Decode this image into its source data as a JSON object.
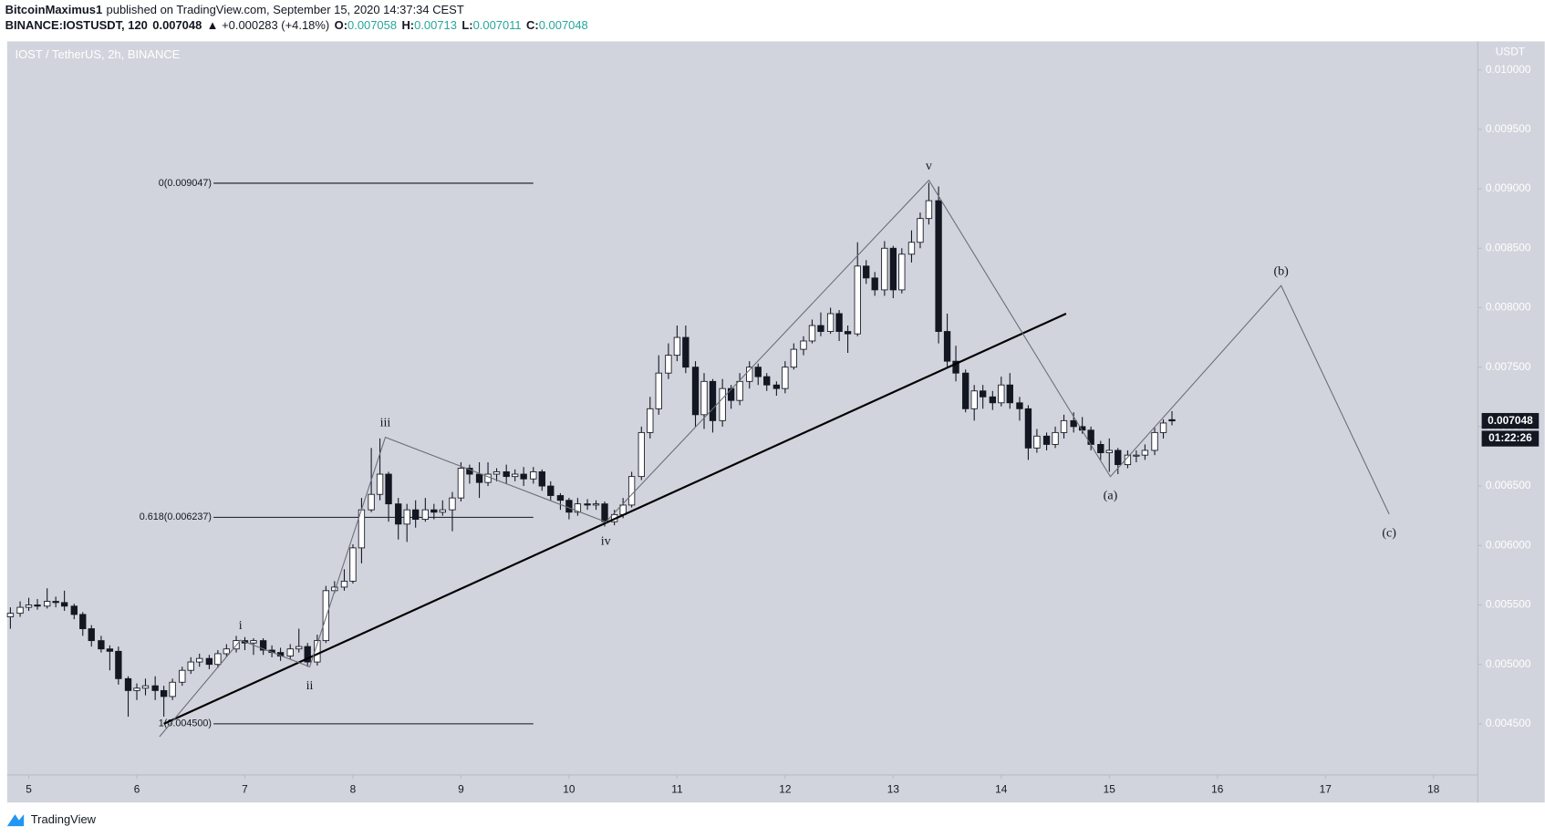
{
  "header": {
    "author": "BitcoinMaximus1",
    "published": "published on TradingView.com, September 15, 2020 14:37:34 CEST",
    "symbol": "BINANCE:IOSTUSDT, 120",
    "change": "▲ +0.000283 (+4.18%)",
    "ohlc_labels": [
      "O:",
      "H:",
      "L:",
      "C:"
    ]
  },
  "chart_data": {
    "type": "candlestick",
    "title": "IOST / TetherUS, 2h, BINANCE",
    "unit": "USDT",
    "countdown": "01:22:26",
    "logo": "TradingView",
    "xlim": [
      4.8,
      18.41
    ],
    "xticks": [
      5,
      6,
      7,
      8,
      9,
      10,
      11,
      12,
      13,
      14,
      15,
      16,
      17,
      18
    ],
    "ylim": [
      0.00407,
      0.01024
    ],
    "yticks": [
      {
        "value": 0.0045,
        "label": "0.004500"
      },
      {
        "value": 0.005,
        "label": "0.005000"
      },
      {
        "value": 0.0055,
        "label": "0.005500"
      },
      {
        "value": 0.006,
        "label": "0.006000"
      },
      {
        "value": 0.0065,
        "label": "0.006500"
      },
      {
        "value": 0.007,
        "label": "0.007000"
      },
      {
        "value": 0.0075,
        "label": "0.007500"
      },
      {
        "value": 0.008,
        "label": "0.008000"
      },
      {
        "value": 0.0085,
        "label": "0.008500"
      },
      {
        "value": 0.009,
        "label": "0.009000"
      },
      {
        "value": 0.0095,
        "label": "0.009500"
      },
      {
        "value": 0.01,
        "label": "0.010000"
      }
    ],
    "up_color": "#ffffff",
    "down_color": "#131722",
    "value_color": "#26a69a",
    "x": [
      4.83,
      4.92,
      5.0,
      5.08,
      5.17,
      5.25,
      5.33,
      5.42,
      5.5,
      5.58,
      5.67,
      5.75,
      5.83,
      5.92,
      6.0,
      6.08,
      6.17,
      6.25,
      6.33,
      6.42,
      6.5,
      6.58,
      6.67,
      6.75,
      6.83,
      6.92,
      7.0,
      7.08,
      7.17,
      7.25,
      7.33,
      7.42,
      7.5,
      7.58,
      7.67,
      7.75,
      7.83,
      7.92,
      8.0,
      8.08,
      8.17,
      8.25,
      8.33,
      8.42,
      8.5,
      8.58,
      8.67,
      8.75,
      8.83,
      8.92,
      9.0,
      9.08,
      9.17,
      9.25,
      9.33,
      9.42,
      9.5,
      9.58,
      9.67,
      9.75,
      9.83,
      9.92,
      10.0,
      10.08,
      10.17,
      10.25,
      10.33,
      10.42,
      10.5,
      10.58,
      10.67,
      10.75,
      10.83,
      10.92,
      11.0,
      11.08,
      11.17,
      11.25,
      11.33,
      11.42,
      11.5,
      11.58,
      11.67,
      11.75,
      11.83,
      11.92,
      12.0,
      12.08,
      12.17,
      12.25,
      12.33,
      12.42,
      12.5,
      12.58,
      12.67,
      12.75,
      12.83,
      12.92,
      13.0,
      13.08,
      13.17,
      13.25,
      13.33,
      13.42,
      13.5,
      13.58,
      13.67,
      13.75,
      13.83,
      13.92,
      14.0,
      14.08,
      14.17,
      14.25,
      14.33,
      14.42,
      14.5,
      14.58,
      14.67,
      14.75,
      14.83,
      14.92,
      15.0,
      15.08,
      15.17,
      15.25,
      15.33,
      15.42,
      15.5,
      15.58
    ],
    "open": [
      0.0054,
      0.00543,
      0.00548,
      0.0055,
      0.00549,
      0.00553,
      0.00552,
      0.00549,
      0.00542,
      0.0053,
      0.0052,
      0.00513,
      0.00511,
      0.00488,
      0.00478,
      0.0048,
      0.00482,
      0.00478,
      0.00473,
      0.00485,
      0.00495,
      0.00502,
      0.00505,
      0.005,
      0.00509,
      0.00513,
      0.0052,
      0.00518,
      0.0052,
      0.00512,
      0.0051,
      0.00507,
      0.00513,
      0.00515,
      0.00502,
      0.0052,
      0.00562,
      0.00565,
      0.0057,
      0.00598,
      0.0063,
      0.00643,
      0.0066,
      0.00635,
      0.00618,
      0.0063,
      0.00622,
      0.0063,
      0.00628,
      0.0063,
      0.0064,
      0.00665,
      0.0066,
      0.00653,
      0.0066,
      0.00662,
      0.00658,
      0.0066,
      0.00656,
      0.00662,
      0.0065,
      0.00642,
      0.00638,
      0.00628,
      0.00635,
      0.00634,
      0.00635,
      0.0062,
      0.00626,
      0.00634,
      0.00658,
      0.00695,
      0.00715,
      0.00745,
      0.0076,
      0.00775,
      0.0075,
      0.0071,
      0.00738,
      0.00705,
      0.00732,
      0.00722,
      0.00738,
      0.0075,
      0.00742,
      0.00735,
      0.00732,
      0.0075,
      0.00765,
      0.00772,
      0.00785,
      0.0078,
      0.00795,
      0.0078,
      0.00778,
      0.00835,
      0.00825,
      0.00815,
      0.0085,
      0.00815,
      0.00845,
      0.00855,
      0.00875,
      0.0089,
      0.0078,
      0.00755,
      0.00745,
      0.00715,
      0.0073,
      0.00725,
      0.0072,
      0.00735,
      0.0072,
      0.00715,
      0.00682,
      0.00692,
      0.00685,
      0.00695,
      0.00705,
      0.007,
      0.00697,
      0.00685,
      0.00678,
      0.0068,
      0.00668,
      0.00676,
      0.00676,
      0.0068,
      0.00695,
      0.007058
    ],
    "high": [
      0.00548,
      0.00553,
      0.00556,
      0.00555,
      0.00564,
      0.00557,
      0.00562,
      0.00551,
      0.00544,
      0.00533,
      0.00524,
      0.00516,
      0.00515,
      0.0049,
      0.00484,
      0.00488,
      0.0049,
      0.00482,
      0.00488,
      0.00498,
      0.00506,
      0.00509,
      0.00508,
      0.00512,
      0.00517,
      0.00524,
      0.00523,
      0.00522,
      0.00522,
      0.00516,
      0.00514,
      0.00517,
      0.0053,
      0.00518,
      0.00525,
      0.00566,
      0.0057,
      0.0058,
      0.00601,
      0.0064,
      0.00682,
      0.0069,
      0.00662,
      0.0064,
      0.00635,
      0.00638,
      0.0064,
      0.00635,
      0.00638,
      0.00645,
      0.0067,
      0.00668,
      0.0067,
      0.0067,
      0.00665,
      0.00668,
      0.00664,
      0.00666,
      0.00666,
      0.00664,
      0.00654,
      0.00644,
      0.0064,
      0.0064,
      0.00639,
      0.00638,
      0.00637,
      0.0063,
      0.0064,
      0.00662,
      0.007,
      0.00725,
      0.0076,
      0.0077,
      0.00785,
      0.00785,
      0.00755,
      0.00745,
      0.0074,
      0.0074,
      0.00735,
      0.00745,
      0.00755,
      0.00753,
      0.00745,
      0.00738,
      0.00755,
      0.0077,
      0.00776,
      0.0079,
      0.00796,
      0.008,
      0.00798,
      0.00785,
      0.00855,
      0.0084,
      0.0083,
      0.00856,
      0.00852,
      0.0085,
      0.00865,
      0.0088,
      0.00905,
      0.00902,
      0.00795,
      0.00768,
      0.00748,
      0.00735,
      0.00735,
      0.0073,
      0.00742,
      0.00745,
      0.00725,
      0.00718,
      0.00698,
      0.00695,
      0.007,
      0.0071,
      0.00712,
      0.00708,
      0.007,
      0.00688,
      0.0069,
      0.00682,
      0.0068,
      0.0068,
      0.00685,
      0.00699,
      0.00706,
      0.00713
    ],
    "low": [
      0.0053,
      0.0054,
      0.00545,
      0.00546,
      0.00547,
      0.00548,
      0.00545,
      0.00538,
      0.00524,
      0.00515,
      0.0051,
      0.00495,
      0.00483,
      0.00456,
      0.0047,
      0.00474,
      0.0047,
      0.00456,
      0.0047,
      0.00482,
      0.00492,
      0.00498,
      0.00496,
      0.00497,
      0.00506,
      0.0051,
      0.00512,
      0.00508,
      0.00508,
      0.00506,
      0.00503,
      0.00504,
      0.0051,
      0.00498,
      0.00499,
      0.00518,
      0.0056,
      0.00562,
      0.00568,
      0.00585,
      0.00628,
      0.00638,
      0.0062,
      0.00605,
      0.00603,
      0.00615,
      0.0062,
      0.00622,
      0.00625,
      0.00612,
      0.00637,
      0.00652,
      0.0064,
      0.0065,
      0.00654,
      0.00652,
      0.00654,
      0.0065,
      0.00652,
      0.00646,
      0.00638,
      0.0063,
      0.00622,
      0.00625,
      0.0063,
      0.0063,
      0.00616,
      0.00617,
      0.00623,
      0.00632,
      0.00655,
      0.0069,
      0.0071,
      0.0074,
      0.00755,
      0.00745,
      0.007,
      0.00698,
      0.00695,
      0.007,
      0.00715,
      0.00718,
      0.00732,
      0.00735,
      0.0073,
      0.00726,
      0.00728,
      0.00748,
      0.0076,
      0.0077,
      0.00776,
      0.00778,
      0.00772,
      0.00762,
      0.00776,
      0.0082,
      0.0081,
      0.0081,
      0.00808,
      0.00812,
      0.00838,
      0.0085,
      0.0087,
      0.0077,
      0.0075,
      0.00738,
      0.00712,
      0.00705,
      0.00715,
      0.00714,
      0.00717,
      0.00715,
      0.00705,
      0.00672,
      0.00678,
      0.0068,
      0.00682,
      0.0069,
      0.00695,
      0.00694,
      0.0068,
      0.00672,
      0.00662,
      0.0066,
      0.00665,
      0.0067,
      0.00672,
      0.00676,
      0.0069,
      0.007011
    ],
    "close": [
      0.00543,
      0.00548,
      0.0055,
      0.00549,
      0.00553,
      0.00552,
      0.00549,
      0.00542,
      0.0053,
      0.0052,
      0.00513,
      0.00511,
      0.00488,
      0.00478,
      0.0048,
      0.00482,
      0.00478,
      0.00473,
      0.00485,
      0.00495,
      0.00502,
      0.00505,
      0.005,
      0.00509,
      0.00513,
      0.0052,
      0.00518,
      0.0052,
      0.00512,
      0.0051,
      0.00507,
      0.00513,
      0.00515,
      0.00502,
      0.0052,
      0.00562,
      0.00565,
      0.0057,
      0.00598,
      0.0063,
      0.00643,
      0.0066,
      0.00635,
      0.00618,
      0.0063,
      0.00622,
      0.0063,
      0.00628,
      0.0063,
      0.0064,
      0.00665,
      0.0066,
      0.00653,
      0.0066,
      0.00662,
      0.00658,
      0.0066,
      0.00656,
      0.00662,
      0.0065,
      0.00642,
      0.00638,
      0.00628,
      0.00635,
      0.00634,
      0.00635,
      0.0062,
      0.00626,
      0.00634,
      0.00658,
      0.00695,
      0.00715,
      0.00745,
      0.0076,
      0.00775,
      0.0075,
      0.0071,
      0.00738,
      0.00705,
      0.00732,
      0.00722,
      0.00738,
      0.0075,
      0.00742,
      0.00735,
      0.00732,
      0.0075,
      0.00765,
      0.00772,
      0.00785,
      0.0078,
      0.00795,
      0.0078,
      0.00778,
      0.00835,
      0.00825,
      0.00815,
      0.0085,
      0.00815,
      0.00845,
      0.00855,
      0.00875,
      0.0089,
      0.0078,
      0.00755,
      0.00745,
      0.00715,
      0.0073,
      0.00725,
      0.0072,
      0.00735,
      0.0072,
      0.00715,
      0.00682,
      0.00692,
      0.00685,
      0.00695,
      0.00705,
      0.007,
      0.00697,
      0.00685,
      0.00678,
      0.0068,
      0.00668,
      0.00676,
      0.00676,
      0.0068,
      0.00695,
      0.00703,
      0.007048
    ],
    "fib": [
      {
        "value": 0.009047,
        "label": "0(0.009047)"
      },
      {
        "value": 0.006237,
        "label": "0.618(0.006237)"
      },
      {
        "value": 0.0045,
        "label": "1(0.004500)"
      }
    ],
    "fib_x": [
      6.71,
      9.67
    ],
    "trendline": {
      "x": [
        6.25,
        14.6
      ],
      "y": [
        0.0045,
        0.00795
      ]
    },
    "waves": {
      "x": [
        6.21,
        6.96,
        7.6,
        8.3,
        10.34,
        13.33,
        15.01,
        16.59,
        17.59
      ],
      "y": [
        0.004392,
        0.005204,
        0.00498,
        0.00691,
        0.006198,
        0.009072,
        0.006579,
        0.008186,
        0.006264
      ],
      "labels": [
        null,
        "i",
        "ii",
        "iii",
        "iv",
        "v",
        "(a)",
        "(b)",
        "(c)"
      ]
    }
  }
}
